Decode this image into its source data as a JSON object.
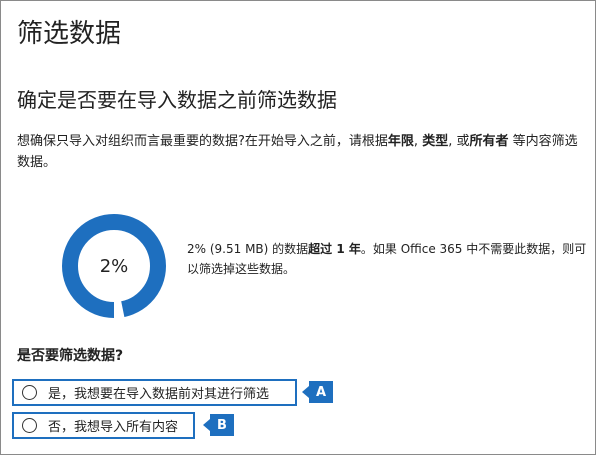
{
  "page": {
    "title": "筛选数据",
    "subtitle": "确定是否要在导入数据之前筛选数据"
  },
  "description": {
    "pre": "想确保只导入对组织而言最重要的数据?在开始导入之前，请根据",
    "bold1": "年限",
    "sep1": ", ",
    "bold2": "类型",
    "sep2": ", 或",
    "bold3": "所有者",
    "post": " 等内容筛选数据。"
  },
  "summary": {
    "percent_label": "2%",
    "percent_value": 2,
    "text_pre": "2% (9.51 MB) 的数据",
    "text_bold": "超过 1 年",
    "text_post": "。如果 Office 365 中不需要此数据，则可以筛选掉这些数据。",
    "ring_color": "#1e6fbf",
    "slice_color": "#ffffff"
  },
  "filter_question": "是否要筛选数据?",
  "options": [
    {
      "label": "是，我想要在导入数据前对其进行筛选",
      "callout": "A"
    },
    {
      "label": "否，我想导入所有内容",
      "callout": "B"
    }
  ],
  "colors": {
    "accent": "#1e6fbf"
  }
}
